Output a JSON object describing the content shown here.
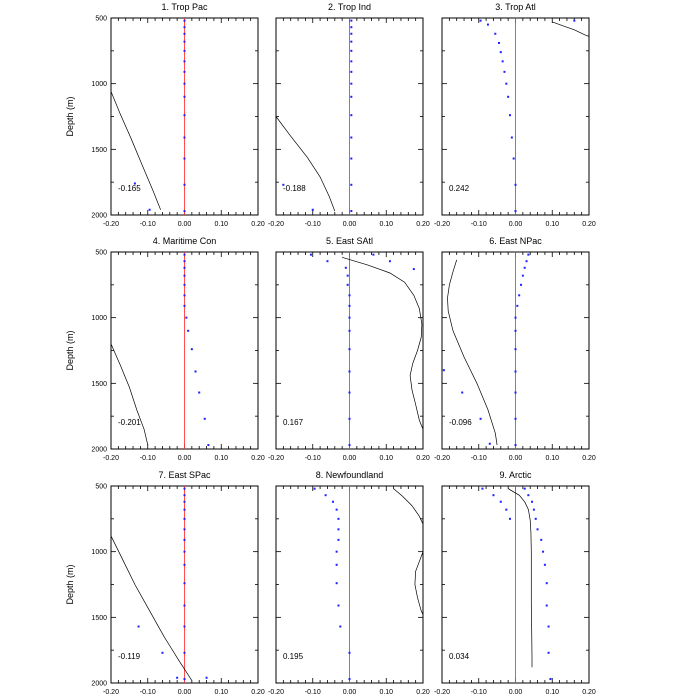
{
  "figure": {
    "ylabel": "Depth (m)",
    "ticks_x": [
      "-0.20",
      "-0.10",
      "0.00",
      "0.10",
      "0.20"
    ],
    "ticks_y": [
      "500",
      "1000",
      "1500",
      "2000"
    ]
  },
  "colors": {
    "dots": "#1f1fff",
    "zero_line": "#ff3b3b",
    "curve": "#000000"
  },
  "chart_data": [
    {
      "type": "scatter",
      "title": "1. Trop Pac",
      "annotation": "-0.165",
      "xlim": [
        -0.2,
        0.2
      ],
      "ylim": [
        2000,
        500
      ],
      "dots": [
        [
          0.0,
          520
        ],
        [
          0.0,
          570
        ],
        [
          0.0,
          620
        ],
        [
          0.0,
          680
        ],
        [
          0.0,
          750
        ],
        [
          0.0,
          830
        ],
        [
          0.0,
          910
        ],
        [
          0.0,
          1000
        ],
        [
          0.0,
          1100
        ],
        [
          0.0,
          1240
        ],
        [
          0.0,
          1410
        ],
        [
          0.0,
          1570
        ],
        [
          0.0,
          1770
        ],
        [
          0.0,
          1970
        ],
        [
          -0.135,
          1760
        ],
        [
          -0.095,
          1960
        ]
      ],
      "curve": [
        [
          -0.2,
          1060
        ],
        [
          -0.175,
          1230
        ],
        [
          -0.145,
          1420
        ],
        [
          -0.115,
          1620
        ],
        [
          -0.085,
          1820
        ],
        [
          -0.065,
          1960
        ]
      ]
    },
    {
      "type": "scatter",
      "title": "2. Trop Ind",
      "annotation": "-0.188",
      "xlim": [
        -0.2,
        0.2
      ],
      "ylim": [
        2000,
        500
      ],
      "dots": [
        [
          0.005,
          520
        ],
        [
          0.005,
          570
        ],
        [
          0.005,
          620
        ],
        [
          0.005,
          680
        ],
        [
          0.005,
          750
        ],
        [
          0.005,
          830
        ],
        [
          0.005,
          910
        ],
        [
          0.005,
          1000
        ],
        [
          0.005,
          1100
        ],
        [
          0.005,
          1240
        ],
        [
          0.005,
          1410
        ],
        [
          0.005,
          1570
        ],
        [
          0.005,
          1770
        ],
        [
          0.005,
          1970
        ],
        [
          -0.18,
          1770
        ],
        [
          -0.1,
          1960
        ]
      ],
      "curve": [
        [
          -0.2,
          1250
        ],
        [
          -0.16,
          1400
        ],
        [
          -0.115,
          1560
        ],
        [
          -0.08,
          1710
        ],
        [
          -0.055,
          1860
        ],
        [
          -0.04,
          1970
        ]
      ]
    },
    {
      "type": "scatter",
      "title": "3. Trop Atl",
      "annotation": "0.242",
      "xlim": [
        -0.2,
        0.2
      ],
      "ylim": [
        2000,
        500
      ],
      "dots": [
        [
          -0.095,
          520
        ],
        [
          -0.075,
          550
        ],
        [
          -0.055,
          620
        ],
        [
          -0.045,
          690
        ],
        [
          -0.04,
          760
        ],
        [
          -0.035,
          830
        ],
        [
          -0.03,
          910
        ],
        [
          -0.025,
          1000
        ],
        [
          -0.02,
          1100
        ],
        [
          -0.015,
          1240
        ],
        [
          -0.01,
          1410
        ],
        [
          -0.005,
          1570
        ],
        [
          0.0,
          1770
        ],
        [
          0.0,
          1970
        ],
        [
          0.16,
          520
        ]
      ],
      "curve": [
        [
          0.1,
          530
        ],
        [
          0.13,
          560
        ],
        [
          0.16,
          590
        ],
        [
          0.19,
          630
        ],
        [
          0.2,
          640
        ]
      ]
    },
    {
      "type": "scatter",
      "title": "4. Maritime Con",
      "annotation": "-0.201",
      "xlim": [
        -0.2,
        0.2
      ],
      "ylim": [
        2000,
        500
      ],
      "dots": [
        [
          0.0,
          520
        ],
        [
          0.0,
          570
        ],
        [
          0.0,
          620
        ],
        [
          0.0,
          680
        ],
        [
          0.0,
          750
        ],
        [
          0.0,
          830
        ],
        [
          0.0,
          910
        ],
        [
          0.005,
          1000
        ],
        [
          0.01,
          1100
        ],
        [
          0.02,
          1240
        ],
        [
          0.03,
          1410
        ],
        [
          0.04,
          1570
        ],
        [
          0.055,
          1770
        ],
        [
          0.065,
          1970
        ]
      ],
      "curve": [
        [
          -0.2,
          1200
        ],
        [
          -0.175,
          1360
        ],
        [
          -0.15,
          1530
        ],
        [
          -0.13,
          1700
        ],
        [
          -0.11,
          1850
        ],
        [
          -0.1,
          1970
        ]
      ]
    },
    {
      "type": "scatter",
      "title": "5. East SAtl",
      "annotation": "0.167",
      "xlim": [
        -0.2,
        0.2
      ],
      "ylim": [
        2000,
        500
      ],
      "dots": [
        [
          -0.105,
          520
        ],
        [
          -0.06,
          570
        ],
        [
          -0.01,
          620
        ],
        [
          -0.005,
          680
        ],
        [
          -0.005,
          750
        ],
        [
          0.0,
          830
        ],
        [
          0.0,
          910
        ],
        [
          0.0,
          1000
        ],
        [
          0.0,
          1100
        ],
        [
          0.0,
          1240
        ],
        [
          0.0,
          1410
        ],
        [
          0.0,
          1570
        ],
        [
          0.0,
          1770
        ],
        [
          0.0,
          1970
        ],
        [
          0.065,
          520
        ],
        [
          0.11,
          570
        ],
        [
          0.175,
          630
        ]
      ],
      "curve": [
        [
          -0.02,
          540
        ],
        [
          0.05,
          600
        ],
        [
          0.11,
          660
        ],
        [
          0.15,
          730
        ],
        [
          0.175,
          830
        ],
        [
          0.19,
          930
        ],
        [
          0.197,
          1050
        ],
        [
          0.195,
          1150
        ],
        [
          0.185,
          1250
        ],
        [
          0.172,
          1350
        ],
        [
          0.165,
          1440
        ],
        [
          0.17,
          1550
        ],
        [
          0.18,
          1660
        ],
        [
          0.19,
          1780
        ],
        [
          0.2,
          1850
        ]
      ]
    },
    {
      "type": "scatter",
      "title": "6. East NPac",
      "annotation": "-0.096",
      "xlim": [
        -0.2,
        0.2
      ],
      "ylim": [
        2000,
        500
      ],
      "dots": [
        [
          0.035,
          520
        ],
        [
          0.03,
          570
        ],
        [
          0.025,
          620
        ],
        [
          0.02,
          680
        ],
        [
          0.015,
          750
        ],
        [
          0.01,
          830
        ],
        [
          0.005,
          910
        ],
        [
          0.0,
          1000
        ],
        [
          0.0,
          1100
        ],
        [
          0.0,
          1240
        ],
        [
          0.0,
          1410
        ],
        [
          0.0,
          1570
        ],
        [
          0.0,
          1770
        ],
        [
          0.0,
          1970
        ],
        [
          -0.195,
          1400
        ],
        [
          -0.145,
          1570
        ],
        [
          -0.095,
          1770
        ],
        [
          -0.07,
          1960
        ]
      ],
      "curve": [
        [
          -0.16,
          560
        ],
        [
          -0.17,
          650
        ],
        [
          -0.18,
          750
        ],
        [
          -0.185,
          850
        ],
        [
          -0.183,
          950
        ],
        [
          -0.17,
          1100
        ],
        [
          -0.14,
          1300
        ],
        [
          -0.105,
          1500
        ],
        [
          -0.075,
          1700
        ],
        [
          -0.055,
          1880
        ],
        [
          -0.05,
          1970
        ]
      ]
    },
    {
      "type": "scatter",
      "title": "7. East SPac",
      "annotation": "-0.119",
      "xlim": [
        -0.2,
        0.2
      ],
      "ylim": [
        2000,
        500
      ],
      "dots": [
        [
          0.0,
          520
        ],
        [
          0.0,
          570
        ],
        [
          0.0,
          620
        ],
        [
          0.0,
          680
        ],
        [
          0.0,
          750
        ],
        [
          0.0,
          830
        ],
        [
          0.0,
          910
        ],
        [
          0.0,
          1000
        ],
        [
          0.0,
          1100
        ],
        [
          0.0,
          1240
        ],
        [
          0.0,
          1410
        ],
        [
          0.0,
          1570
        ],
        [
          0.0,
          1770
        ],
        [
          0.0,
          1970
        ],
        [
          -0.125,
          1570
        ],
        [
          -0.06,
          1770
        ],
        [
          -0.02,
          1960
        ],
        [
          0.06,
          1960
        ]
      ],
      "curve": [
        [
          -0.2,
          880
        ],
        [
          -0.17,
          1050
        ],
        [
          -0.135,
          1250
        ],
        [
          -0.095,
          1450
        ],
        [
          -0.055,
          1650
        ],
        [
          -0.015,
          1830
        ],
        [
          0.02,
          1980
        ]
      ]
    },
    {
      "type": "scatter",
      "title": "8. Newfoundland",
      "annotation": "0.195",
      "xlim": [
        -0.2,
        0.2
      ],
      "ylim": [
        2000,
        500
      ],
      "dots": [
        [
          -0.095,
          520
        ],
        [
          -0.065,
          570
        ],
        [
          -0.045,
          620
        ],
        [
          -0.035,
          680
        ],
        [
          -0.03,
          750
        ],
        [
          -0.03,
          830
        ],
        [
          -0.03,
          910
        ],
        [
          -0.035,
          1000
        ],
        [
          -0.035,
          1100
        ],
        [
          -0.035,
          1240
        ],
        [
          -0.03,
          1410
        ],
        [
          -0.025,
          1570
        ],
        [
          0.0,
          1770
        ],
        [
          0.0,
          1970
        ]
      ],
      "curve": [
        [
          0.12,
          520
        ],
        [
          0.145,
          580
        ],
        [
          0.17,
          650
        ],
        [
          0.19,
          730
        ],
        [
          0.2,
          790
        ],
        [
          0.2,
          1000
        ],
        [
          0.18,
          1150
        ],
        [
          0.178,
          1250
        ],
        [
          0.185,
          1350
        ],
        [
          0.195,
          1450
        ],
        [
          0.2,
          1480
        ]
      ]
    },
    {
      "type": "scatter",
      "title": "9. Arctic",
      "annotation": "0.034",
      "xlim": [
        -0.2,
        0.2
      ],
      "ylim": [
        2000,
        500
      ],
      "dots": [
        [
          -0.09,
          520
        ],
        [
          -0.06,
          570
        ],
        [
          -0.04,
          620
        ],
        [
          -0.025,
          680
        ],
        [
          -0.015,
          750
        ],
        [
          0.06,
          830
        ],
        [
          0.07,
          910
        ],
        [
          0.075,
          1000
        ],
        [
          0.08,
          1100
        ],
        [
          0.085,
          1240
        ],
        [
          0.085,
          1410
        ],
        [
          0.09,
          1570
        ],
        [
          0.09,
          1770
        ],
        [
          0.095,
          1970
        ],
        [
          0.025,
          520
        ],
        [
          0.035,
          570
        ],
        [
          0.045,
          620
        ],
        [
          0.05,
          680
        ],
        [
          0.055,
          750
        ]
      ],
      "curve": [
        [
          -0.02,
          520
        ],
        [
          0.01,
          570
        ],
        [
          0.025,
          620
        ],
        [
          0.035,
          680
        ],
        [
          0.04,
          760
        ],
        [
          0.042,
          850
        ],
        [
          0.043,
          1000
        ],
        [
          0.043,
          1200
        ],
        [
          0.043,
          1400
        ],
        [
          0.044,
          1600
        ],
        [
          0.045,
          1800
        ],
        [
          0.045,
          1880
        ]
      ]
    }
  ]
}
